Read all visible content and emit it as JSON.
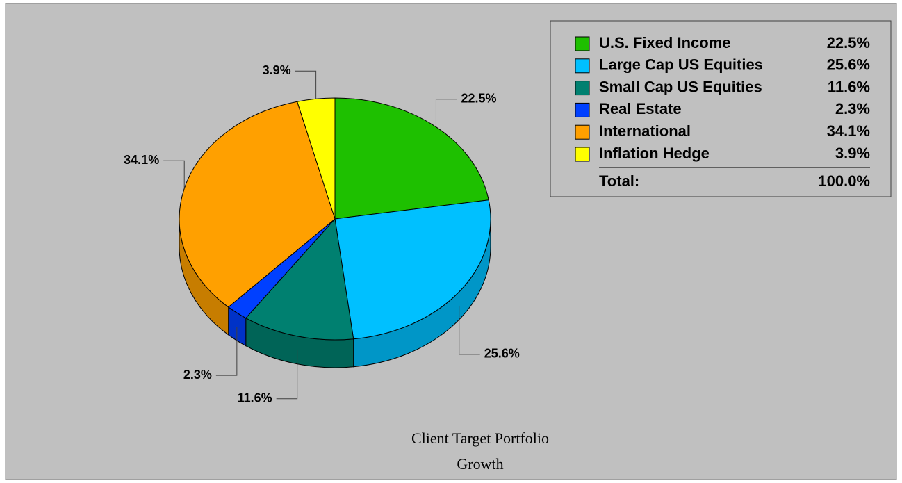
{
  "chart_data": {
    "type": "pie",
    "title": "Client Target Portfolio",
    "subtitle": "Growth",
    "categories": [
      "U.S. Fixed Income",
      "Large Cap US Equities",
      "Small Cap US Equities",
      "Real Estate",
      "International",
      "Inflation Hedge"
    ],
    "values": [
      22.5,
      25.6,
      11.6,
      2.3,
      34.1,
      3.9
    ],
    "value_labels": [
      "22.5%",
      "25.6%",
      "11.6%",
      "2.3%",
      "34.1%",
      "3.9%"
    ],
    "colors": [
      "#1ec000",
      "#00c0ff",
      "#008070",
      "#0040ff",
      "#ffa000",
      "#ffff00"
    ],
    "total_label": "Total:",
    "total": 100,
    "total_value_label": "100.0%"
  }
}
